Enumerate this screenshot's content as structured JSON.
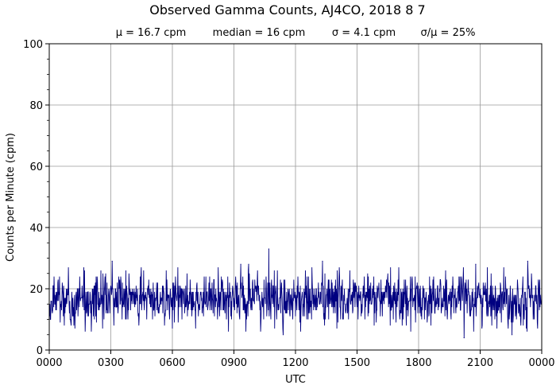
{
  "chart_data": {
    "type": "line",
    "title": "Observed Gamma Counts, AJ4CO, 2018 8 7",
    "subtitle_parts": [
      "μ = 16.7 cpm",
      "median = 16 cpm",
      "σ = 4.1 cpm",
      "σ/μ = 25%"
    ],
    "xlabel": "UTC",
    "ylabel": "Counts per Minute (cpm)",
    "xlim_minutes": [
      0,
      1440
    ],
    "ylim": [
      0,
      100
    ],
    "x_ticks": [
      {
        "minute": 0,
        "label": "0000"
      },
      {
        "minute": 180,
        "label": "0300"
      },
      {
        "minute": 360,
        "label": "0600"
      },
      {
        "minute": 540,
        "label": "0900"
      },
      {
        "minute": 720,
        "label": "1200"
      },
      {
        "minute": 900,
        "label": "1500"
      },
      {
        "minute": 1080,
        "label": "1800"
      },
      {
        "minute": 1260,
        "label": "2100"
      },
      {
        "minute": 1440,
        "label": "0000"
      }
    ],
    "y_ticks": [
      0,
      20,
      40,
      60,
      80,
      100
    ],
    "grid": true,
    "line_color": "#000080",
    "series": [
      {
        "x_start_minute": 0,
        "x_step_minutes": 1,
        "mean": 16.7,
        "median": 16,
        "std": 4.1,
        "notable_points": [
          {
            "minute": 184,
            "value": 29
          },
          {
            "minute": 560,
            "value": 28
          },
          {
            "minute": 583,
            "value": 28
          },
          {
            "minute": 642,
            "value": 33
          },
          {
            "minute": 684,
            "value": 5
          },
          {
            "minute": 799,
            "value": 29
          },
          {
            "minute": 1213,
            "value": 4
          },
          {
            "minute": 1247,
            "value": 28
          },
          {
            "minute": 1353,
            "value": 5
          },
          {
            "minute": 1399,
            "value": 29
          }
        ]
      }
    ]
  }
}
